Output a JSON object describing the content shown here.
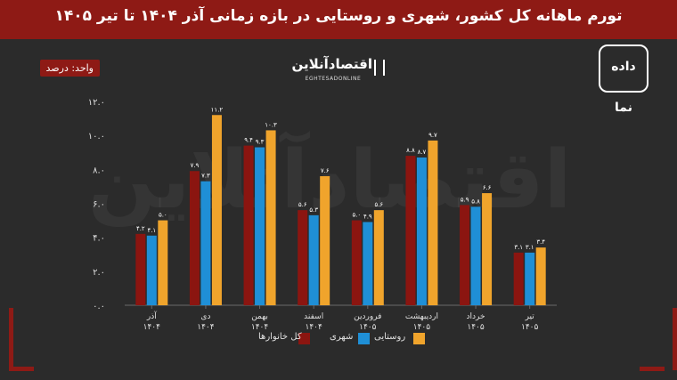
{
  "header": {
    "title": "تورم ماهانه کل کشور، شهری و روستایی در بازه زمانی آذر ۱۴۰۴ تا تیر ۱۴۰۵"
  },
  "unit_label": "واحد: درصد",
  "logo": {
    "name": "اقتصادآنلاین",
    "sub": "EGHTESADONLINE"
  },
  "brand": {
    "name": "داده نما"
  },
  "colors": {
    "kol": "#8b1510",
    "shahri": "#1f8fd6",
    "roustaei": "#f0a42c",
    "banner": "#8e1a15"
  },
  "chart_data": {
    "type": "bar",
    "categories": [
      "آذر ۱۴۰۴",
      "دی ۱۴۰۴",
      "بهمن ۱۴۰۴",
      "اسفند ۱۴۰۴",
      "فروردین ۱۴۰۵",
      "اردیبهشت ۱۴۰۵",
      "خرداد ۱۴۰۵",
      "تیر ۱۴۰۵"
    ],
    "series": [
      {
        "name": "کل خانوارها",
        "values": [
          4.2,
          7.9,
          9.4,
          5.6,
          5.0,
          8.8,
          5.9,
          3.1
        ],
        "labels": [
          "۴.۲",
          "۷.۹",
          "۹.۴",
          "۵.۶",
          "۵.۰",
          "۸.۸",
          "۵.۹",
          "۳.۱"
        ]
      },
      {
        "name": "شهری",
        "values": [
          4.1,
          7.3,
          9.3,
          5.3,
          4.9,
          8.7,
          5.8,
          3.1
        ],
        "labels": [
          "۴.۱",
          "۷.۳",
          "۹.۳",
          "۵.۳",
          "۴.۹",
          "۸.۷",
          "۵.۸",
          "۳.۱"
        ]
      },
      {
        "name": "روستایی",
        "values": [
          5.0,
          11.2,
          10.3,
          7.6,
          5.6,
          9.7,
          6.6,
          3.4
        ],
        "labels": [
          "۵.۰",
          "۱۱.۲",
          "۱۰.۳",
          "۷.۶",
          "۵.۶",
          "۹.۷",
          "۶.۶",
          "۳.۴"
        ]
      }
    ],
    "ylim": [
      0,
      12
    ],
    "yticks": [
      0,
      2,
      4,
      6,
      8,
      10,
      12
    ],
    "ytick_labels": [
      "۰.۰",
      "۲.۰",
      "۴.۰",
      "۶.۰",
      "۸.۰",
      "۱۰.۰",
      "۱۲.۰"
    ],
    "grid": false,
    "legend_position": "bottom"
  }
}
